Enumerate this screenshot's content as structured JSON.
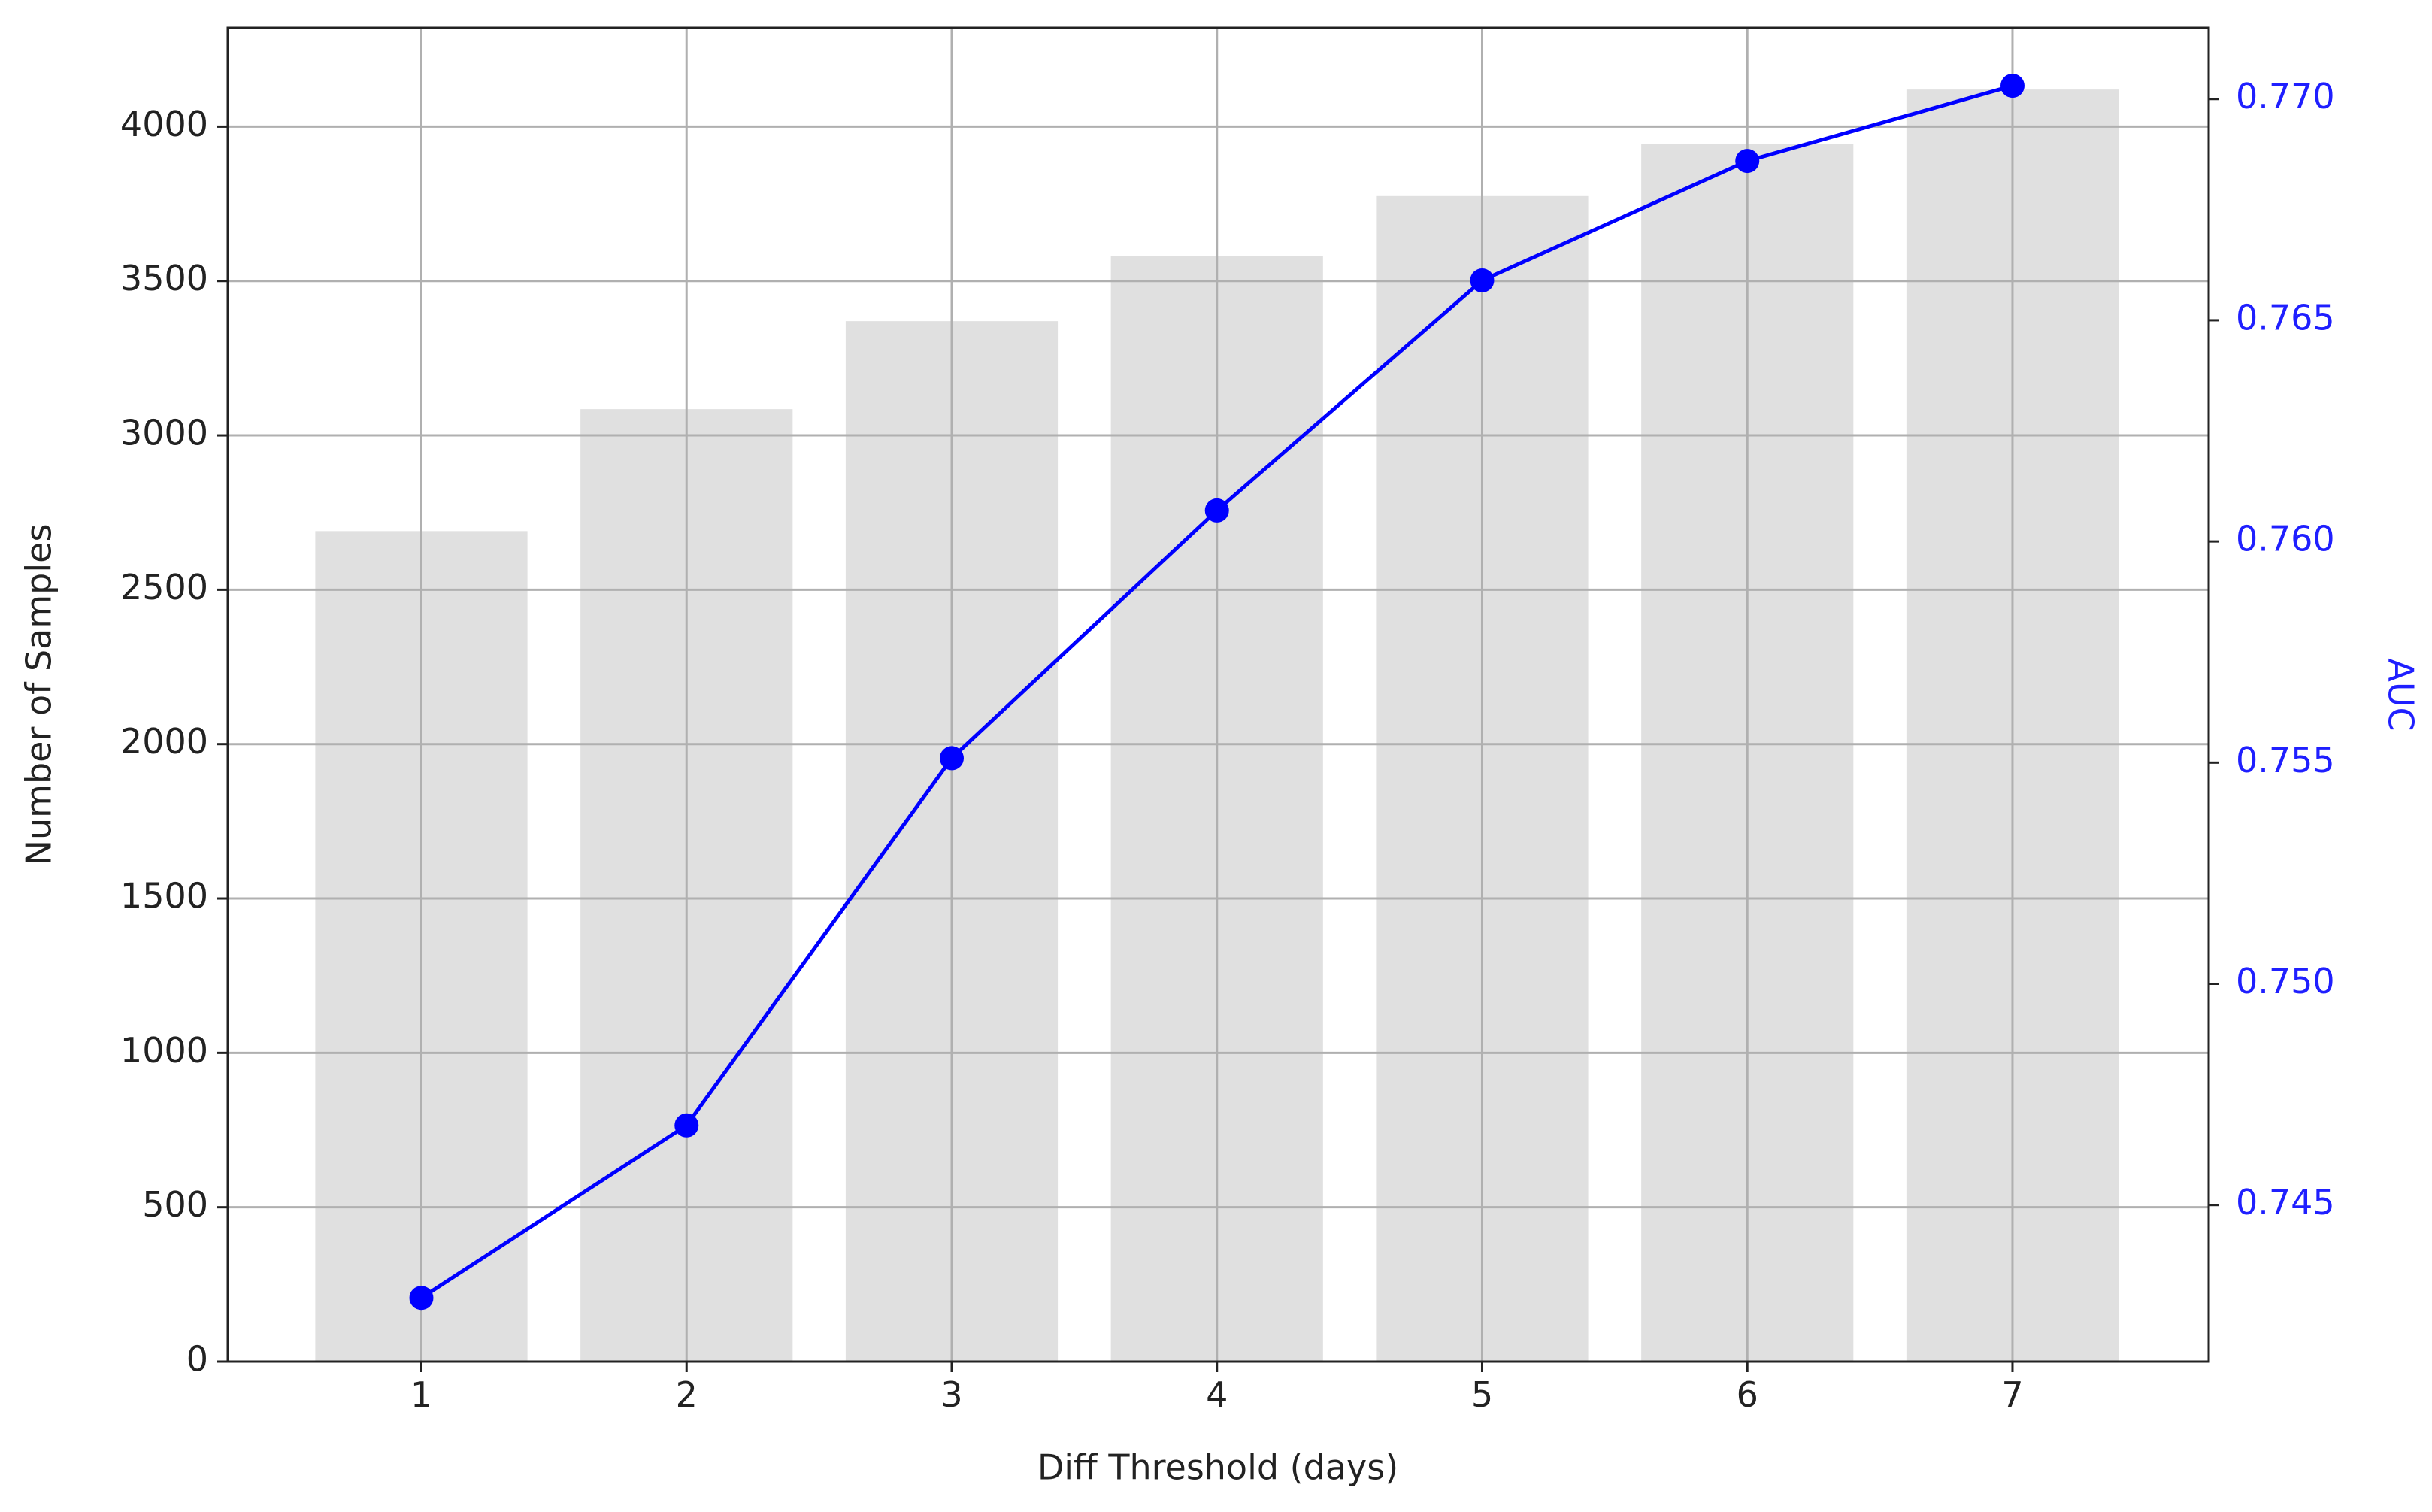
{
  "chart_data": {
    "type": "combo",
    "x_label": "Diff Threshold (days)",
    "y_label": "Number of Samples",
    "y2_label": "AUC",
    "x": [
      1,
      2,
      3,
      4,
      5,
      6,
      7
    ],
    "series": [
      {
        "type": "bar",
        "color": "#e0e0e0",
        "values": [
          2690,
          3085,
          3370,
          3580,
          3775,
          3945,
          4120
        ]
      },
      {
        "type": "line",
        "color": "#0000ff",
        "axis": "y2",
        "values": [
          0.7429,
          0.7468,
          0.7551,
          0.7607,
          0.7659,
          0.7686,
          0.7703
        ]
      }
    ],
    "xlim": [
      0.27,
      7.74
    ],
    "xticks": [
      1,
      2,
      3,
      4,
      5,
      6,
      7
    ],
    "ylim": [
      0,
      4320
    ],
    "yticks": [
      0,
      500,
      1000,
      1500,
      2000,
      2500,
      3000,
      3500,
      4000
    ],
    "y2lim": [
      0.74146,
      0.77161
    ],
    "y2ticks": [
      0.745,
      {
        "value": 0.75,
        "label": "0.750"
      },
      0.755,
      {
        "value": 0.76,
        "label": "0.760"
      },
      0.765,
      {
        "value": 0.77,
        "label": "0.770"
      }
    ],
    "y2_color": "#1f1fff",
    "bar_width": 0.8,
    "grid": true
  }
}
